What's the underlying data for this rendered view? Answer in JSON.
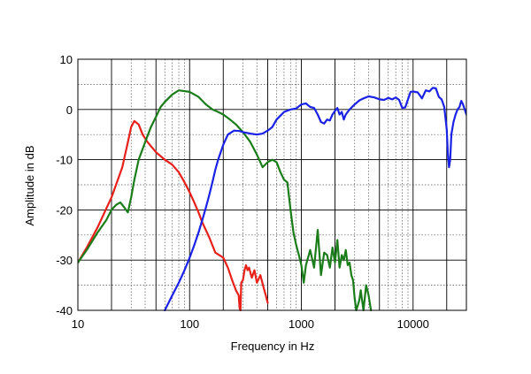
{
  "chart_data": {
    "type": "line",
    "title": "",
    "xlabel": "Frequency in Hz",
    "ylabel": "Amplitude in dB",
    "xscale": "log",
    "xlim": [
      10,
      30000
    ],
    "ylim": [
      -40,
      10
    ],
    "grid": true,
    "x_ticks": [
      {
        "value": 10,
        "label": "10"
      },
      {
        "value": 100,
        "label": "100"
      },
      {
        "value": 1000,
        "label": "1000"
      },
      {
        "value": 10000,
        "label": "10000"
      }
    ],
    "y_ticks": [
      {
        "value": 10,
        "label": "10"
      },
      {
        "value": 0,
        "label": "0"
      },
      {
        "value": -10,
        "label": "-10"
      },
      {
        "value": -20,
        "label": "-20"
      },
      {
        "value": -30,
        "label": "-30"
      },
      {
        "value": -40,
        "label": "-40"
      }
    ],
    "series": [
      {
        "name": "red",
        "color": "#e8201a",
        "x": [
          10,
          12,
          15,
          20,
          25,
          28,
          30,
          32,
          35,
          38,
          42,
          50,
          60,
          70,
          80,
          90,
          100,
          110,
          120,
          130,
          150,
          170,
          200,
          220,
          240,
          260,
          275,
          280,
          285,
          290,
          300,
          310,
          320,
          330,
          340,
          360,
          380,
          400,
          430,
          460,
          480,
          500
        ],
        "y": [
          -30.5,
          -27.5,
          -23.5,
          -17.5,
          -11.5,
          -6.5,
          -3.5,
          -2.3,
          -3.0,
          -5.0,
          -6.5,
          -8.5,
          -10.0,
          -11.0,
          -12.5,
          -14.5,
          -16.5,
          -18.5,
          -20.5,
          -22.5,
          -25.5,
          -28.5,
          -29.5,
          -31.5,
          -34.0,
          -36.0,
          -37.0,
          -39.5,
          -40.0,
          -34.5,
          -34.0,
          -32.0,
          -31.0,
          -32.0,
          -31.5,
          -33.5,
          -32.0,
          -34.5,
          -33.0,
          -35.5,
          -37.0,
          -38.5
        ]
      },
      {
        "name": "green",
        "color": "#1a7d1a",
        "x": [
          10,
          12,
          15,
          18,
          20,
          22,
          24,
          26,
          28,
          30,
          32,
          35,
          40,
          45,
          50,
          55,
          60,
          70,
          80,
          100,
          120,
          140,
          160,
          180,
          200,
          230,
          260,
          300,
          350,
          400,
          450,
          500,
          550,
          600,
          650,
          700,
          750,
          800,
          850,
          900,
          950,
          1000,
          1050,
          1100,
          1200,
          1300,
          1400,
          1500,
          1600,
          1700,
          1800,
          1900,
          2000,
          2100,
          2200,
          2300,
          2400,
          2500,
          2600,
          2700,
          2800,
          2900,
          3000,
          3100,
          3200,
          3300,
          3400,
          3600,
          3800,
          4000,
          4200
        ],
        "y": [
          -30.5,
          -28.0,
          -24.5,
          -22.0,
          -20.0,
          -19.0,
          -18.5,
          -19.5,
          -20.5,
          -17.5,
          -14.0,
          -10.0,
          -6.5,
          -3.5,
          -1.5,
          0.5,
          1.5,
          3.0,
          3.8,
          3.5,
          2.5,
          1.0,
          0.0,
          -0.5,
          -1.0,
          -2.0,
          -3.0,
          -4.5,
          -6.5,
          -9.0,
          -11.5,
          -10.5,
          -10.0,
          -10.5,
          -12.5,
          -14.0,
          -14.5,
          -20.0,
          -24.5,
          -27.0,
          -29.0,
          -31.0,
          -34.5,
          -31.0,
          -28.0,
          -31.5,
          -24.0,
          -33.0,
          -28.5,
          -29.0,
          -31.5,
          -27.5,
          -30.5,
          -26.0,
          -31.5,
          -29.0,
          -30.0,
          -28.0,
          -31.0,
          -30.5,
          -33.0,
          -34.0,
          -37.5,
          -40.0,
          -39.0,
          -38.0,
          -36.0,
          -40.0,
          -35.0,
          -37.0,
          -40.0
        ]
      },
      {
        "name": "blue",
        "color": "#1a22e6",
        "x": [
          60,
          70,
          80,
          90,
          100,
          110,
          120,
          130,
          140,
          150,
          160,
          170,
          180,
          200,
          220,
          250,
          280,
          300,
          350,
          400,
          450,
          500,
          550,
          600,
          700,
          800,
          900,
          1000,
          1100,
          1200,
          1300,
          1400,
          1500,
          1600,
          1700,
          1800,
          1900,
          2000,
          2100,
          2200,
          2300,
          2400,
          2500,
          2700,
          3000,
          3300,
          3600,
          4000,
          4500,
          5000,
          5500,
          6000,
          6500,
          7000,
          7500,
          8000,
          8500,
          9000,
          9500,
          10000,
          11000,
          12000,
          13000,
          14000,
          15000,
          16000,
          17000,
          18000,
          19000,
          20000,
          20500,
          21000,
          21500,
          22000,
          23000,
          24000,
          25000,
          26000,
          27000,
          28000,
          29000,
          30000
        ],
        "y": [
          -40.0,
          -37.0,
          -34.5,
          -32.0,
          -29.5,
          -27.0,
          -24.5,
          -22.0,
          -19.5,
          -17.0,
          -14.5,
          -12.0,
          -10.0,
          -7.0,
          -5.0,
          -4.2,
          -4.3,
          -4.5,
          -4.8,
          -5.0,
          -4.8,
          -4.2,
          -3.5,
          -2.0,
          -0.5,
          0.0,
          0.2,
          1.0,
          1.2,
          0.5,
          0.3,
          -1.0,
          -2.5,
          -2.8,
          -2.0,
          -2.2,
          -1.0,
          -0.3,
          0.3,
          -1.0,
          -0.5,
          -2.0,
          -1.0,
          0.0,
          1.0,
          1.8,
          2.2,
          2.6,
          2.4,
          2.0,
          1.9,
          2.3,
          2.0,
          2.4,
          1.9,
          0.3,
          0.4,
          2.0,
          3.5,
          3.6,
          3.4,
          2.2,
          3.8,
          3.6,
          4.3,
          4.2,
          2.5,
          2.0,
          0.5,
          -4.0,
          -9.0,
          -11.5,
          -10.0,
          -5.0,
          -2.5,
          -1.0,
          0.0,
          0.5,
          1.7,
          1.0,
          0.0,
          -1.0
        ]
      }
    ]
  }
}
